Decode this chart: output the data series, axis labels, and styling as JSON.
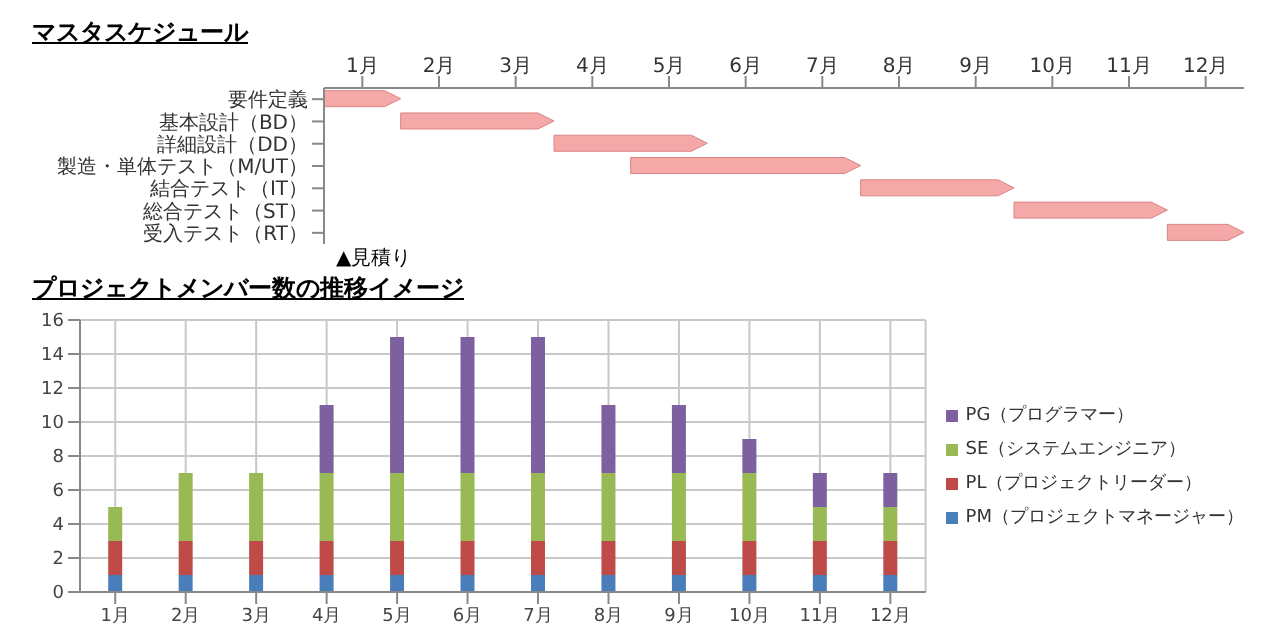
{
  "chart_data": [
    {
      "type": "bar",
      "title": "マスタスケジュール",
      "orientation": "horizontal",
      "categories": [
        "要件定義",
        "基本設計（BD）",
        "詳細設計（DD）",
        "製造・単体テスト（M/UT）",
        "結合テスト（IT）",
        "総合テスト（ST）",
        "受入テスト（RT）"
      ],
      "base": [
        0,
        1,
        3,
        4,
        7,
        9,
        11
      ],
      "values": [
        1,
        2,
        2,
        3,
        2,
        2,
        1
      ],
      "color": "#f4a9a8",
      "xlim": [
        0,
        12
      ],
      "xticks": [
        {
          "value": 0.5,
          "label": "1月"
        },
        {
          "value": 1.5,
          "label": "2月"
        },
        {
          "value": 2.5,
          "label": "3月"
        },
        {
          "value": 3.5,
          "label": "4月"
        },
        {
          "value": 4.5,
          "label": "5月"
        },
        {
          "value": 5.5,
          "label": "6月"
        },
        {
          "value": 6.5,
          "label": "7月"
        },
        {
          "value": 7.5,
          "label": "8月"
        },
        {
          "value": 8.5,
          "label": "9月"
        },
        {
          "value": 9.5,
          "label": "10月"
        },
        {
          "value": 10.5,
          "label": "11月"
        },
        {
          "value": 11.5,
          "label": "12月"
        }
      ],
      "annotations": [
        "▲見積り"
      ]
    },
    {
      "type": "bar",
      "title": "プロジェクトメンバー数の推移イメージ",
      "stacked": true,
      "categories": [
        "1月",
        "2月",
        "3月",
        "4月",
        "5月",
        "6月",
        "7月",
        "8月",
        "9月",
        "10月",
        "11月",
        "12月"
      ],
      "series": [
        {
          "name": "PM（プロジェクトマネージャー）",
          "color": "#4a7ebb",
          "values": [
            1,
            1,
            1,
            1,
            1,
            1,
            1,
            1,
            1,
            1,
            1,
            1
          ]
        },
        {
          "name": "PL（プロジェクトリーダー）",
          "color": "#be4b48",
          "values": [
            2,
            2,
            2,
            2,
            2,
            2,
            2,
            2,
            2,
            2,
            2,
            2
          ]
        },
        {
          "name": "SE（システムエンジニア）",
          "color": "#98b954",
          "values": [
            2,
            4,
            4,
            4,
            4,
            4,
            4,
            4,
            4,
            4,
            2,
            2
          ]
        },
        {
          "name": "PG（プログラマー）",
          "color": "#7d60a0",
          "values": [
            0,
            0,
            0,
            4,
            8,
            8,
            8,
            4,
            4,
            2,
            2,
            2
          ]
        }
      ],
      "ylim": [
        0,
        16
      ],
      "yticks": [
        0,
        2,
        4,
        6,
        8,
        10,
        12,
        14,
        16
      ],
      "grid": true,
      "legend": "right"
    }
  ]
}
